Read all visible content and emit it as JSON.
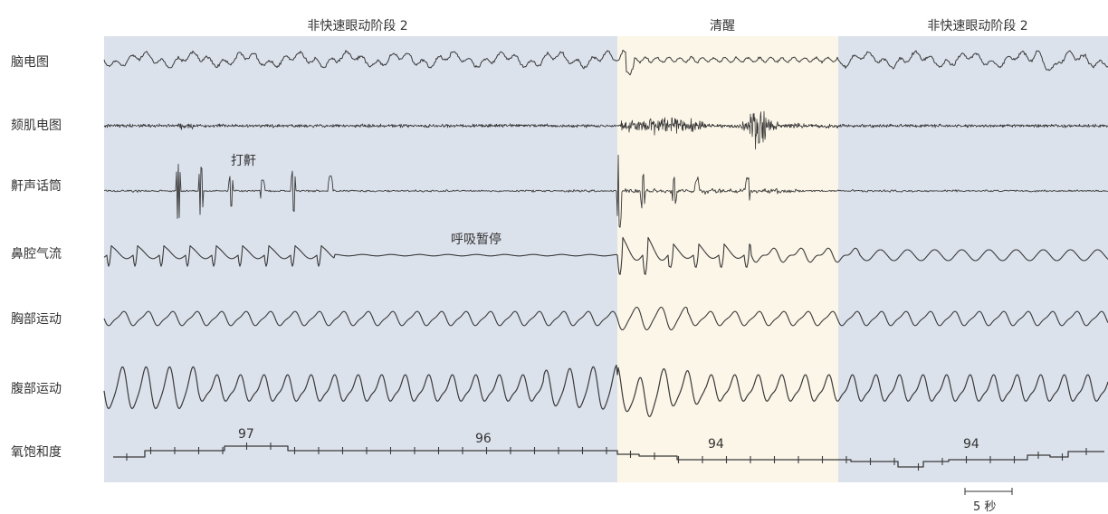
{
  "chart_data": {
    "type": "line",
    "stages": [
      {
        "label": "非快速眼动阶段 2",
        "color": "#dce2ec"
      },
      {
        "label": "清醒",
        "color": "#fcf6e8"
      },
      {
        "label": "非快速眼动阶段 2",
        "color": "#dce2ec"
      }
    ],
    "channels": [
      "脑电图",
      "颏肌电图",
      "鼾声话筒",
      "鼻腔气流",
      "胸部运动",
      "腹部运动",
      "氧饱和度"
    ],
    "annotations": {
      "snore": "打鼾",
      "apnea": "呼吸暂停"
    },
    "spo2_values": [
      "97",
      "96",
      "94",
      "94"
    ],
    "scale_bar": "5 秒"
  }
}
